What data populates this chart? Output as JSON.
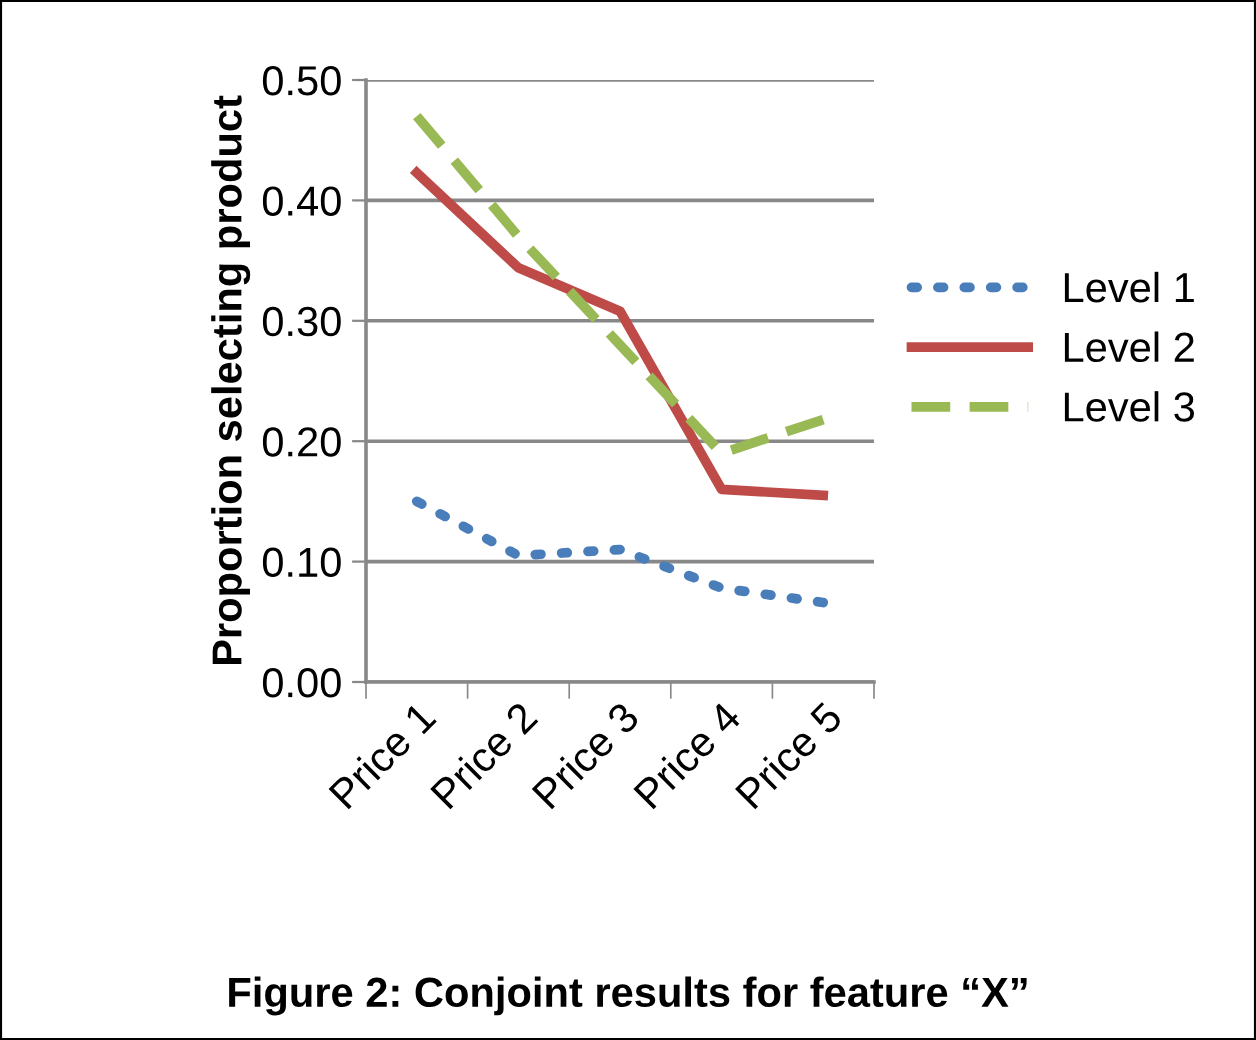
{
  "chart_data": {
    "type": "line",
    "ylabel": "Proportion selecting product",
    "categories": [
      "Price 1",
      "Price 2",
      "Price 3",
      "Price 4",
      "Price 5"
    ],
    "series": [
      {
        "name": "Level 1",
        "color": "#4a7ebb",
        "line_style": "dotted",
        "values": [
          0.15,
          0.105,
          0.11,
          0.078,
          0.066
        ]
      },
      {
        "name": "Level 2",
        "color": "#be4b48",
        "line_style": "solid",
        "values": [
          0.423,
          0.344,
          0.308,
          0.16,
          0.155
        ]
      },
      {
        "name": "Level 3",
        "color": "#98b954",
        "line_style": "dashed",
        "values": [
          0.47,
          0.37,
          0.28,
          0.19,
          0.218
        ]
      }
    ],
    "ylim": [
      0,
      0.5
    ],
    "yticks": [
      {
        "value": 0,
        "label": "0.00"
      },
      {
        "value": 0.1,
        "label": "0.10"
      },
      {
        "value": 0.2,
        "label": "0.20"
      },
      {
        "value": 0.3,
        "label": "0.30"
      },
      {
        "value": 0.4,
        "label": "0.40"
      },
      {
        "value": 0.5,
        "label": "0.50"
      }
    ],
    "grid": "y",
    "legend": "right",
    "annotations": [
      "Figure 2: Conjoint results for feature “X”"
    ]
  }
}
